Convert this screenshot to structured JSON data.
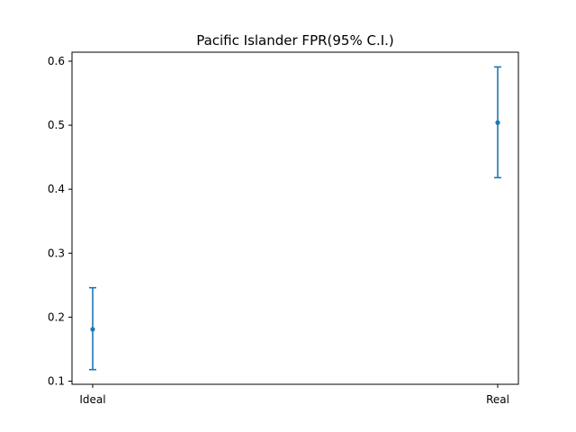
{
  "chart_data": {
    "type": "scatter",
    "title": "Pacific Islander FPR(95% C.I.)",
    "xlabel": "",
    "ylabel": "",
    "categories": [
      "Ideal",
      "Real"
    ],
    "values": [
      0.181,
      0.504
    ],
    "lower": [
      0.118,
      0.418
    ],
    "upper": [
      0.246,
      0.591
    ],
    "ylim": [
      0.1,
      0.6
    ],
    "yticks": [
      0.1,
      0.2,
      0.3,
      0.4,
      0.5,
      0.6
    ],
    "ytick_labels": [
      "0.1",
      "0.2",
      "0.3",
      "0.4",
      "0.5",
      "0.6"
    ],
    "grid": false,
    "color": "#1f77b4"
  }
}
